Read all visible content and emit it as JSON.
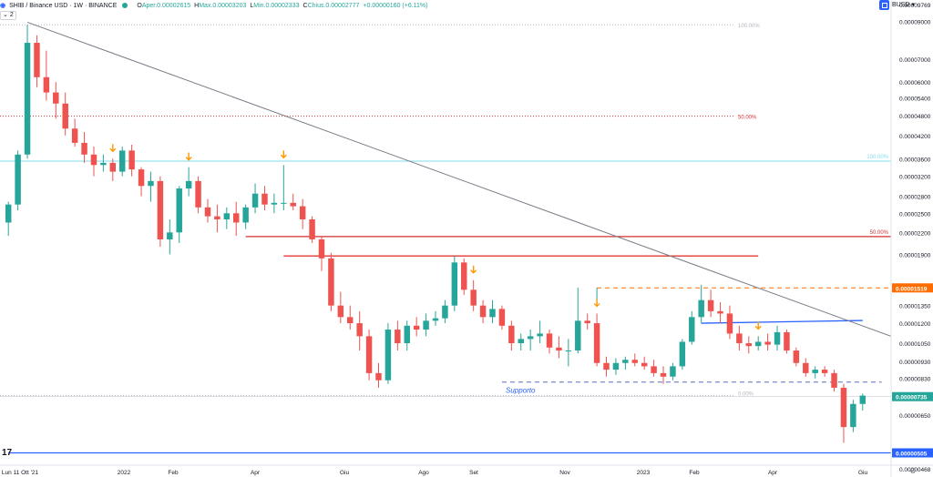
{
  "header": {
    "symbol": "SHIB / Binance USD · 1W · BINANCE",
    "o_label": "O",
    "o_value": "Aper.0.00002615",
    "h_label": "H",
    "h_value": "Max.0.00003203",
    "l_label": "L",
    "l_value": "Min.0.00002333",
    "c_label": "C",
    "c_value": "Chius.0.00002777",
    "change": "+0.00000160 (+6.11%)",
    "layers_badge": "2",
    "currency": "BUSD"
  },
  "colors": {
    "up": "#26a69a",
    "down": "#ef5350",
    "trend": "#787b86",
    "fib_red": "#d32f2f",
    "fib_teal": "#80deea",
    "resistance": "#e53935",
    "support": "#2962ff",
    "highlight": "#ff6d00"
  },
  "chart_data": {
    "type": "candlestick",
    "y_scale": "log",
    "y_ticks": [
      "0.00009000",
      "0.00007000",
      "0.00006000",
      "0.00005400",
      "0.00004800",
      "0.00004200",
      "0.00003600",
      "0.00003200",
      "0.00002800",
      "0.00002500",
      "0.00002200",
      "0.00001900",
      "0.00001519",
      "0.00001350",
      "0.00001200",
      "0.00001050",
      "0.00000930",
      "0.00000830",
      "0.00000735",
      "0.00000650",
      "0.00000505"
    ],
    "y_range": [
      4.68e-06,
      9.769e-05
    ],
    "x_ticks": [
      "Lun 11 Ott '21",
      "2022",
      "Feb",
      "Apr",
      "Giu",
      "Ago",
      "Set",
      "Nov",
      "2023",
      "Feb",
      "Apr",
      "Giu"
    ],
    "top_label": "0.00009769",
    "bottom_label": "0.00000468",
    "price_tags": [
      {
        "value": "0.00001519",
        "color": "#ff6d00"
      },
      {
        "value": "0.00000735",
        "color": "#26a69a"
      },
      {
        "value": "0.00000505",
        "color": "#2962ff"
      }
    ],
    "annotations": {
      "fib_100_a": "100.00%",
      "fib_50_a": "50.00%",
      "fib_0": "0.00%",
      "fib_100_b": "100.00%",
      "fib_50_b": "50.00%",
      "support_text": "Supporto"
    },
    "fib_levels_a": {
      "p100": 8.8e-05,
      "p50": 4.78e-05,
      "p0": 7.4e-06
    },
    "fib_levels_b": {
      "p100": 3.54e-05,
      "p50": 2.14e-05
    },
    "lines": {
      "resistance_1": {
        "value": 2.14e-05,
        "from": 25,
        "to": 95
      },
      "resistance_2": {
        "value": 1.88e-05,
        "from": 29,
        "to": 79
      },
      "support_dashed": {
        "value": 8.1e-06,
        "from": 52,
        "to": 92
      },
      "support_final": {
        "value": 5.05e-06,
        "from": 0,
        "to": 97
      },
      "orange_dashed": {
        "value": 1.519e-05,
        "from": 62,
        "to": 97
      },
      "blue_short": {
        "value": 1.2e-05,
        "from": 73,
        "to": 90
      },
      "trend_start": {
        "i": 2,
        "value": 8.95e-05
      },
      "trend_end": {
        "i": 98,
        "value": 9.8e-06
      }
    },
    "arrows": [
      11,
      19,
      29,
      49,
      62,
      79
    ],
    "candles": [
      [
        2.35e-05,
        2.7e-05,
        2.15e-05,
        2.65e-05
      ],
      [
        2.65e-05,
        3.8e-05,
        2.55e-05,
        3.7e-05
      ],
      [
        3.7e-05,
        8.8e-05,
        3.6e-05,
        7.8e-05
      ],
      [
        7.8e-05,
        8.2e-05,
        5.8e-05,
        6.2e-05
      ],
      [
        6.2e-05,
        7.4e-05,
        5.3e-05,
        5.6e-05
      ],
      [
        5.6e-05,
        6e-05,
        4.7e-05,
        5.2e-05
      ],
      [
        5.2e-05,
        5.6e-05,
        4.2e-05,
        4.4e-05
      ],
      [
        4.4e-05,
        4.7e-05,
        3.9e-05,
        4e-05
      ],
      [
        4e-05,
        4.3e-05,
        3.5e-05,
        3.7e-05
      ],
      [
        3.7e-05,
        3.9e-05,
        3.2e-05,
        3.45e-05
      ],
      [
        3.45e-05,
        3.7e-05,
        3.3e-05,
        3.5e-05
      ],
      [
        3.5e-05,
        3.6e-05,
        3.1e-05,
        3.3e-05
      ],
      [
        3.3e-05,
        3.9e-05,
        3.2e-05,
        3.8e-05
      ],
      [
        3.8e-05,
        3.95e-05,
        3.2e-05,
        3.35e-05
      ],
      [
        3.35e-05,
        3.4e-05,
        2.8e-05,
        3e-05
      ],
      [
        3e-05,
        3.3e-05,
        2.7e-05,
        3.1e-05
      ],
      [
        3.1e-05,
        3.2e-05,
        2e-05,
        2.1e-05
      ],
      [
        2.1e-05,
        2.4e-05,
        1.9e-05,
        2.2e-05
      ],
      [
        2.2e-05,
        3e-05,
        2.05e-05,
        2.95e-05
      ],
      [
        2.95e-05,
        3.4e-05,
        2.8e-05,
        3.1e-05
      ],
      [
        3.1e-05,
        3.2e-05,
        2.5e-05,
        2.6e-05
      ],
      [
        2.6e-05,
        2.75e-05,
        2.35e-05,
        2.45e-05
      ],
      [
        2.45e-05,
        2.65e-05,
        2.2e-05,
        2.4e-05
      ],
      [
        2.4e-05,
        2.6e-05,
        2.25e-05,
        2.5e-05
      ],
      [
        2.5e-05,
        2.7e-05,
        2.15e-05,
        2.35e-05
      ],
      [
        2.35e-05,
        2.65e-05,
        2.25e-05,
        2.6e-05
      ],
      [
        2.6e-05,
        3.05e-05,
        2.5e-05,
        2.85e-05
      ],
      [
        2.85e-05,
        3e-05,
        2.55e-05,
        2.65e-05
      ],
      [
        2.65e-05,
        2.85e-05,
        2.5e-05,
        2.68e-05
      ],
      [
        2.68e-05,
        3.45e-05,
        2.55e-05,
        2.68e-05
      ],
      [
        2.68e-05,
        2.85e-05,
        2.55e-05,
        2.62e-05
      ],
      [
        2.62e-05,
        2.75e-05,
        2.25e-05,
        2.4e-05
      ],
      [
        2.4e-05,
        2.45e-05,
        2.05e-05,
        2.1e-05
      ],
      [
        2.1e-05,
        2.15e-05,
        1.7e-05,
        1.85e-05
      ],
      [
        1.85e-05,
        1.92e-05,
        1.3e-05,
        1.35e-05
      ],
      [
        1.35e-05,
        1.48e-05,
        1.2e-05,
        1.25e-05
      ],
      [
        1.25e-05,
        1.35e-05,
        1.15e-05,
        1.2e-05
      ],
      [
        1.2e-05,
        1.3e-05,
        1e-05,
        1.1e-05
      ],
      [
        1.1e-05,
        1.15e-05,
        8.2e-06,
        8.6e-06
      ],
      [
        8.6e-06,
        9.2e-06,
        7.8e-06,
        8.2e-06
      ],
      [
        8.2e-06,
        1.2e-05,
        8e-06,
        1.15e-05
      ],
      [
        1.15e-05,
        1.22e-05,
        1e-05,
        1.05e-05
      ],
      [
        1.05e-05,
        1.22e-05,
        1e-05,
        1.18e-05
      ],
      [
        1.18e-05,
        1.25e-05,
        1.1e-05,
        1.15e-05
      ],
      [
        1.15e-05,
        1.28e-05,
        1.1e-05,
        1.22e-05
      ],
      [
        1.22e-05,
        1.3e-05,
        1.18e-05,
        1.24e-05
      ],
      [
        1.24e-05,
        1.4e-05,
        1.2e-05,
        1.35e-05
      ],
      [
        1.35e-05,
        1.88e-05,
        1.3e-05,
        1.8e-05
      ],
      [
        1.8e-05,
        1.85e-05,
        1.45e-05,
        1.5e-05
      ],
      [
        1.5e-05,
        1.6e-05,
        1.3e-05,
        1.35e-05
      ],
      [
        1.35e-05,
        1.4e-05,
        1.2e-05,
        1.25e-05
      ],
      [
        1.25e-05,
        1.4e-05,
        1.2e-05,
        1.32e-05
      ],
      [
        1.32e-05,
        1.35e-05,
        1.15e-05,
        1.18e-05
      ],
      [
        1.18e-05,
        1.22e-05,
        1e-05,
        1.05e-05
      ],
      [
        1.05e-05,
        1.12e-05,
        1e-05,
        1.08e-05
      ],
      [
        1.08e-05,
        1.15e-05,
        1e-05,
        1.1e-05
      ],
      [
        1.1e-05,
        1.22e-05,
        1.05e-05,
        1.12e-05
      ],
      [
        1.12e-05,
        1.15e-05,
        9.8e-06,
        1.02e-05
      ],
      [
        1.02e-05,
        1.1e-05,
        9.5e-06,
        1e-05
      ],
      [
        1e-05,
        1.08e-05,
        9e-06,
        1e-05
      ],
      [
        1e-05,
        1.52e-05,
        9.8e-06,
        1.22e-05
      ],
      [
        1.22e-05,
        1.28e-05,
        1.15e-05,
        1.2e-05
      ],
      [
        1.2e-05,
        1.28e-05,
        9e-06,
        9.2e-06
      ],
      [
        9.2e-06,
        9.6e-06,
        8.4e-06,
        8.8e-06
      ],
      [
        8.8e-06,
        9.5e-06,
        8.5e-06,
        9.2e-06
      ],
      [
        9.2e-06,
        9.6e-06,
        8.8e-06,
        9.4e-06
      ],
      [
        9.4e-06,
        9.8e-06,
        9e-06,
        9.2e-06
      ],
      [
        9.2e-06,
        9.6e-06,
        8.8e-06,
        9e-06
      ],
      [
        9e-06,
        9.4e-06,
        8.4e-06,
        8.6e-06
      ],
      [
        8.6e-06,
        9e-06,
        8e-06,
        8.4e-06
      ],
      [
        8.4e-06,
        9.2e-06,
        8.2e-06,
        9e-06
      ],
      [
        9e-06,
        1.08e-05,
        8.8e-06,
        1.06e-05
      ],
      [
        1.06e-05,
        1.3e-05,
        1.04e-05,
        1.25e-05
      ],
      [
        1.25e-05,
        1.55e-05,
        1.2e-05,
        1.4e-05
      ],
      [
        1.4e-05,
        1.5e-05,
        1.25e-05,
        1.3e-05
      ],
      [
        1.3e-05,
        1.38e-05,
        1.2e-05,
        1.28e-05
      ],
      [
        1.28e-05,
        1.35e-05,
        1.08e-05,
        1.12e-05
      ],
      [
        1.12e-05,
        1.18e-05,
        1e-05,
        1.05e-05
      ],
      [
        1.05e-05,
        1.1e-05,
        9.8e-06,
        1.03e-05
      ],
      [
        1.03e-05,
        1.1e-05,
        1e-05,
        1.06e-05
      ],
      [
        1.06e-05,
        1.12e-05,
        1e-05,
        1.04e-05
      ],
      [
        1.04e-05,
        1.18e-05,
        1e-05,
        1.13e-05
      ],
      [
        1.13e-05,
        1.15e-05,
        9.8e-06,
        1e-05
      ],
      [
        1e-05,
        1.02e-05,
        9e-06,
        9.2e-06
      ],
      [
        9.2e-06,
        9.5e-06,
        8.4e-06,
        8.6e-06
      ],
      [
        8.6e-06,
        9e-06,
        8.3e-06,
        8.8e-06
      ],
      [
        8.8e-06,
        9e-06,
        8.4e-06,
        8.6e-06
      ],
      [
        8.6e-06,
        8.8e-06,
        7.6e-06,
        7.8e-06
      ],
      [
        7.8e-06,
        8e-06,
        5.4e-06,
        6e-06
      ],
      [
        6e-06,
        7.2e-06,
        5.8e-06,
        7e-06
      ],
      [
        7e-06,
        7.5e-06,
        6.7e-06,
        7.4e-06
      ]
    ]
  }
}
